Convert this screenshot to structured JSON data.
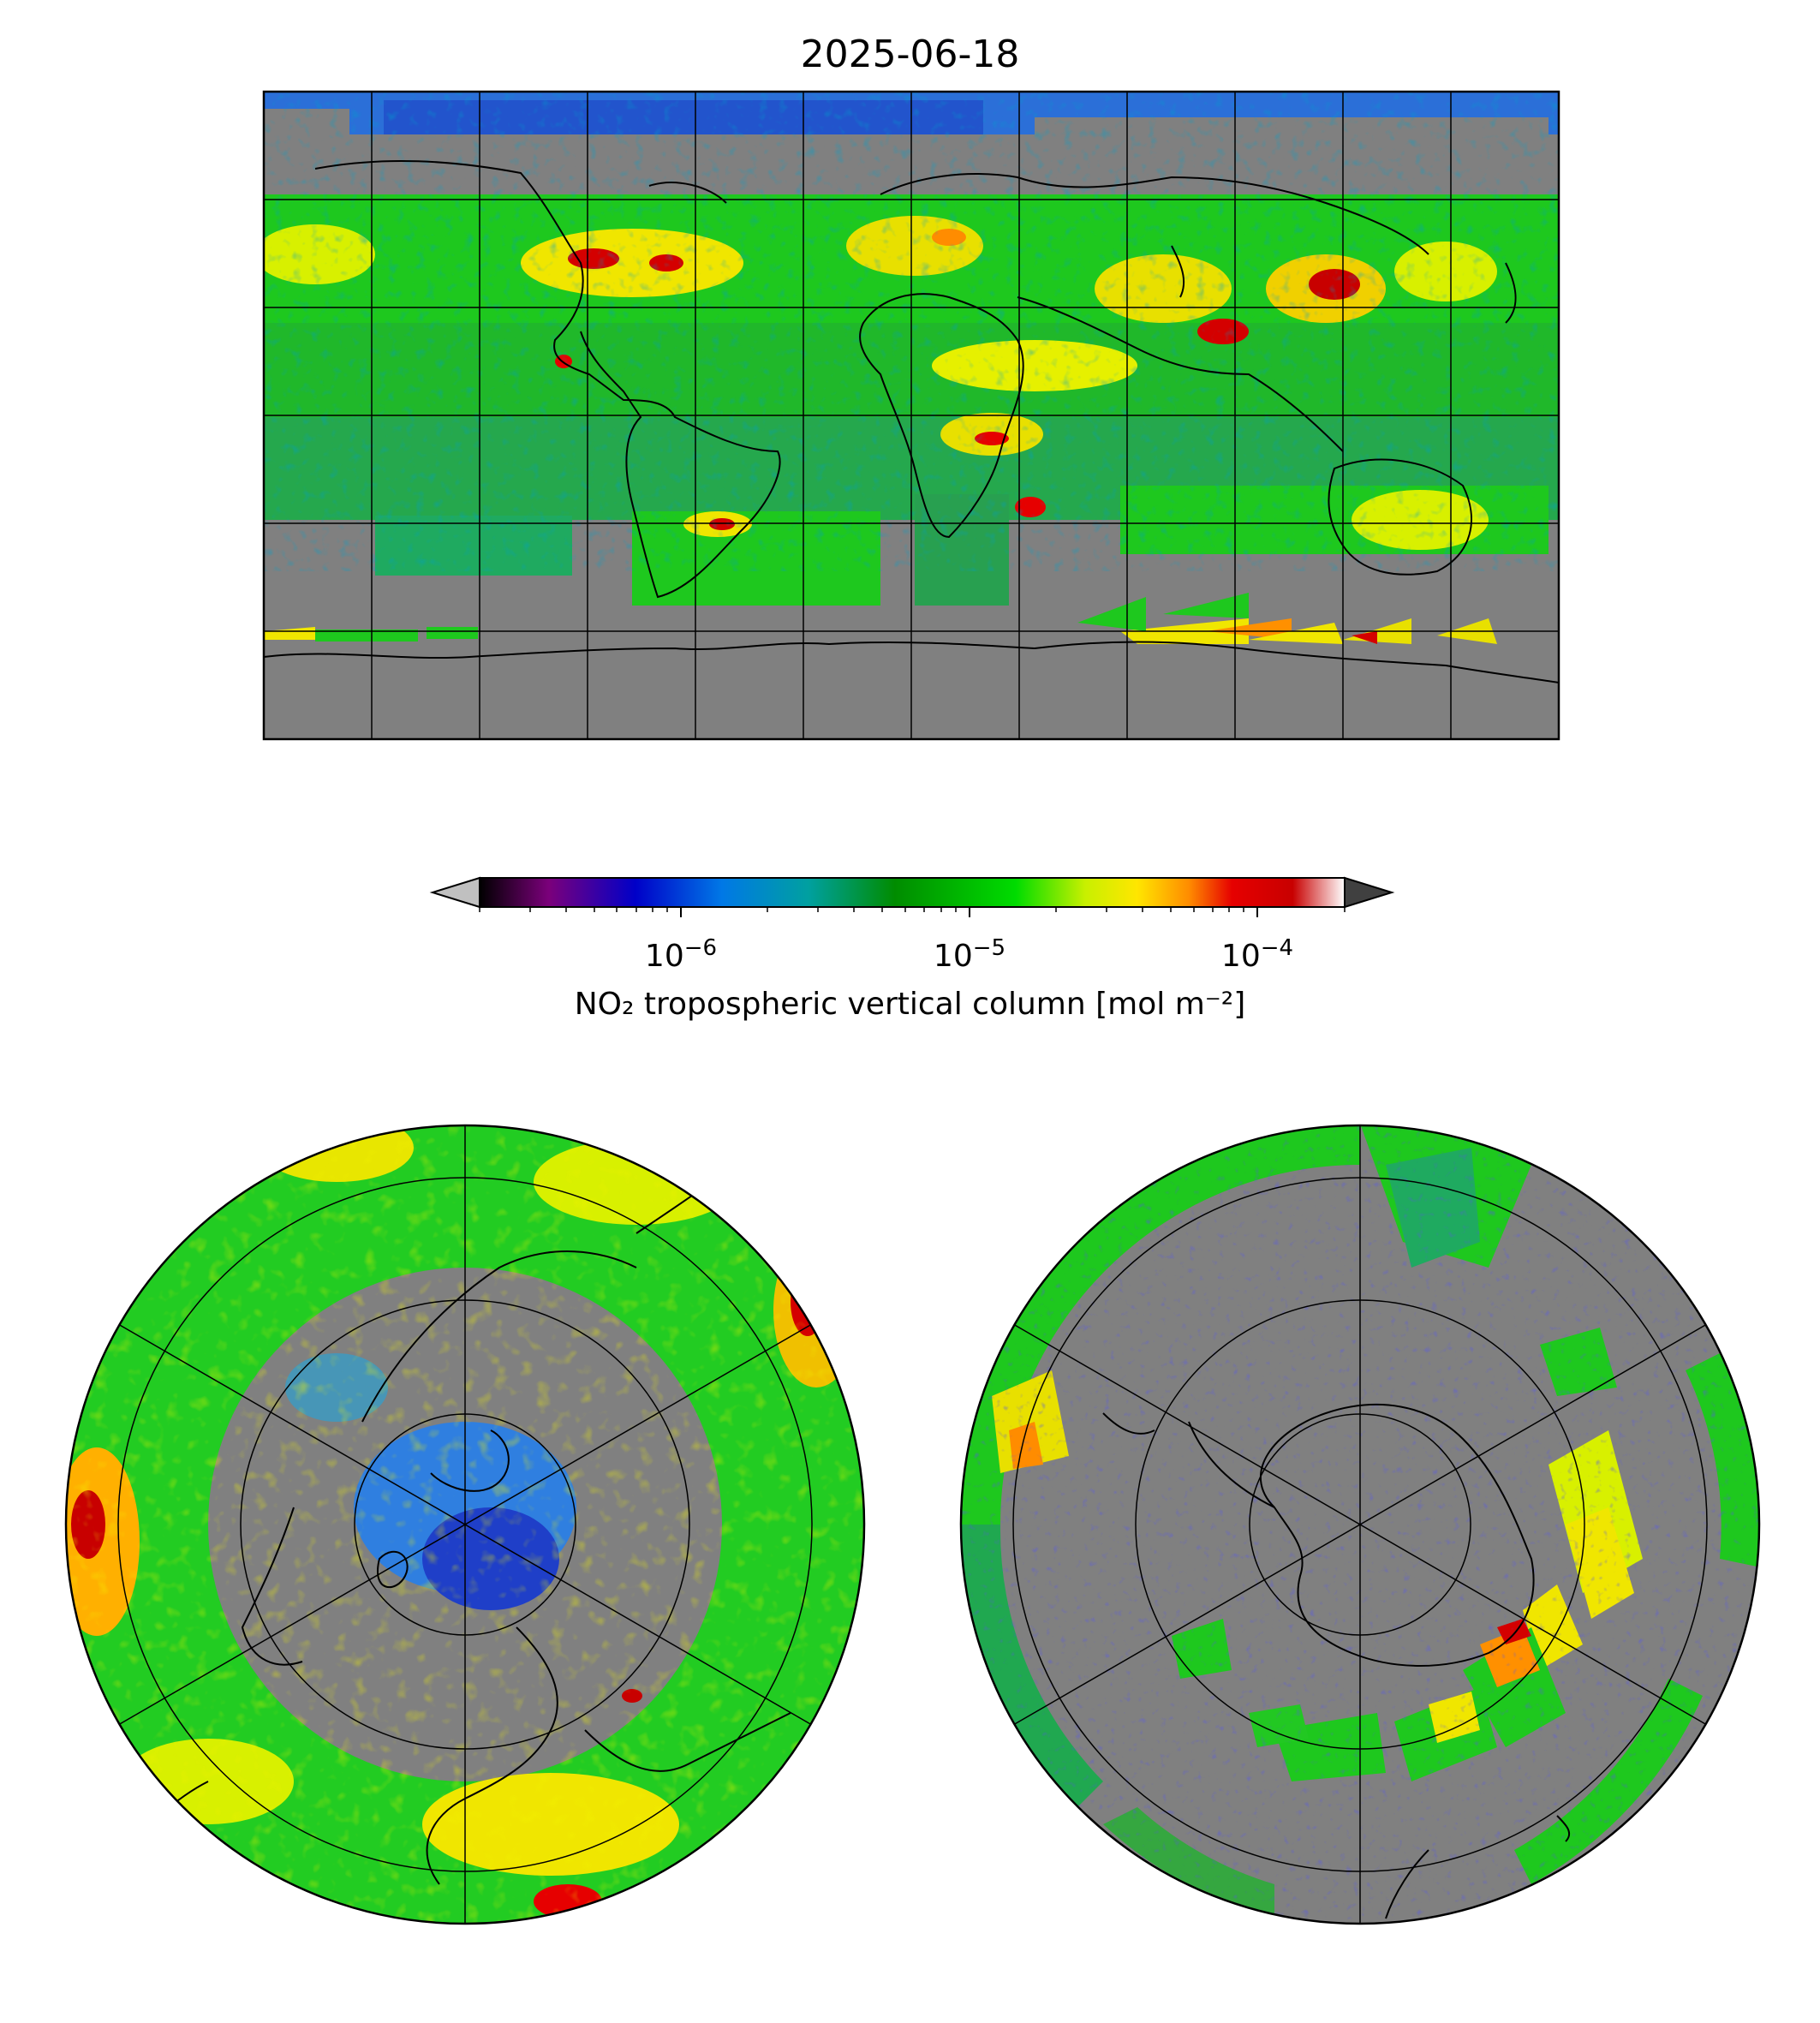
{
  "title": "2025-06-18",
  "colorbar": {
    "label": "NO₂ tropospheric vertical column [mol m⁻²]",
    "scale": "log",
    "range": [
      2e-07,
      0.0002
    ],
    "extend": "both",
    "ticks": [
      {
        "base": "10",
        "exp": "−6"
      },
      {
        "base": "10",
        "exp": "−5"
      },
      {
        "base": "10",
        "exp": "−4"
      }
    ],
    "colormap": [
      "#000000",
      "#7b007b",
      "#0000c8",
      "#0078e6",
      "#00a0a0",
      "#008c00",
      "#00dc00",
      "#c8f000",
      "#ffe600",
      "#ff8c00",
      "#e60000",
      "#c80000",
      "#ffffff"
    ],
    "under_color": "#c0c0c0",
    "over_color": "#404040"
  },
  "colors": {
    "nodata": "#808080",
    "coast": "#000000",
    "grid": "#000000"
  },
  "panels": [
    {
      "name": "global-map",
      "projection": "plate-carree"
    },
    {
      "name": "north-polar-map",
      "projection": "north-polar-stereo"
    },
    {
      "name": "south-polar-map",
      "projection": "south-polar-stereo"
    }
  ]
}
